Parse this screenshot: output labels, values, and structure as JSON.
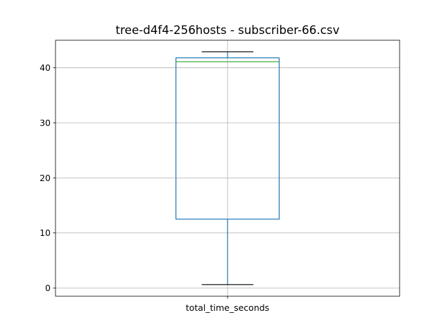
{
  "chart_data": {
    "type": "box",
    "title": "tree-d4f4-256hosts - subscriber-66.csv",
    "xlabel": "",
    "ylabel": "",
    "categories": [
      "total_time_seconds"
    ],
    "series": [
      {
        "name": "total_time_seconds",
        "whisker_low": 0.6,
        "q1": 12.5,
        "median": 41.1,
        "q3": 41.8,
        "whisker_high": 42.9
      }
    ],
    "ylim": [
      -1.5,
      45.0
    ],
    "yticks": [
      0,
      10,
      20,
      30,
      40
    ],
    "grid": true,
    "colors": {
      "box": "#1f77b4",
      "median": "#2ca02c",
      "whisker": "#1f77b4",
      "cap": "#000000",
      "grid": "#b0b0b0",
      "axes": "#000000"
    }
  }
}
